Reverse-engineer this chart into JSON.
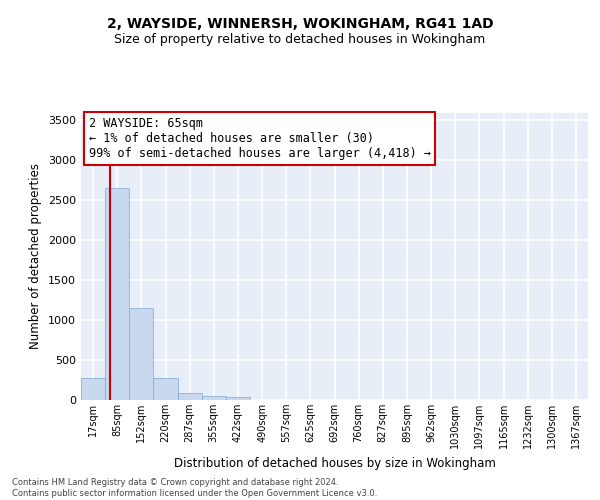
{
  "title1": "2, WAYSIDE, WINNERSH, WOKINGHAM, RG41 1AD",
  "title2": "Size of property relative to detached houses in Wokingham",
  "xlabel": "Distribution of detached houses by size in Wokingham",
  "ylabel": "Number of detached properties",
  "bar_labels": [
    "17sqm",
    "85sqm",
    "152sqm",
    "220sqm",
    "287sqm",
    "355sqm",
    "422sqm",
    "490sqm",
    "557sqm",
    "625sqm",
    "692sqm",
    "760sqm",
    "827sqm",
    "895sqm",
    "962sqm",
    "1030sqm",
    "1097sqm",
    "1165sqm",
    "1232sqm",
    "1300sqm",
    "1367sqm"
  ],
  "bar_values": [
    270,
    2650,
    1150,
    280,
    90,
    45,
    35,
    0,
    0,
    0,
    0,
    0,
    0,
    0,
    0,
    0,
    0,
    0,
    0,
    0,
    0
  ],
  "bar_color": "#c8d8ee",
  "bar_edge_color": "#7aaad0",
  "annotation_line1": "2 WAYSIDE: 65sqm",
  "annotation_line2": "← 1% of detached houses are smaller (30)",
  "annotation_line3": "99% of semi-detached houses are larger (4,418) →",
  "marker_line_color": "#cc0000",
  "ylim": [
    0,
    3600
  ],
  "yticks": [
    0,
    500,
    1000,
    1500,
    2000,
    2500,
    3000,
    3500
  ],
  "bg_color": "#e8eef8",
  "grid_color": "#ffffff",
  "footer_text": "Contains HM Land Registry data © Crown copyright and database right 2024.\nContains public sector information licensed under the Open Government Licence v3.0.",
  "title1_fontsize": 10,
  "title2_fontsize": 9,
  "xlabel_fontsize": 8.5,
  "ylabel_fontsize": 8.5,
  "annotation_fontsize": 8.5
}
